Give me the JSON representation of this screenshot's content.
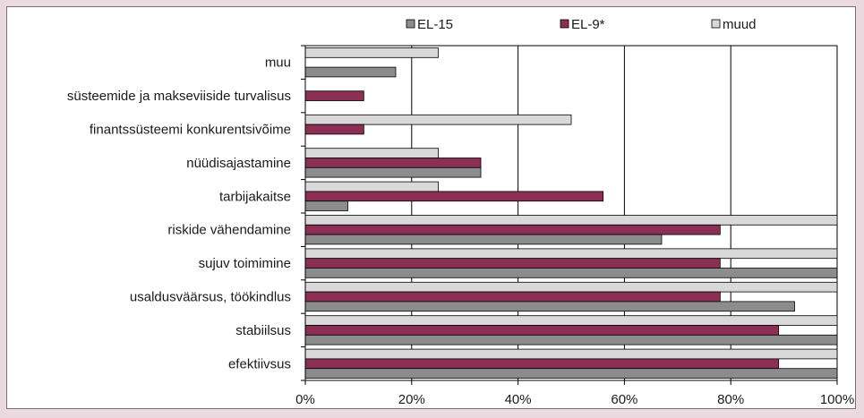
{
  "chart_data": {
    "type": "bar",
    "orientation": "horizontal",
    "categories": [
      "muu",
      "süsteemide ja makseviiside turvalisus",
      "finantssüsteemi konkurentsivõime",
      "nüüdisajastamine",
      "tarbijakaitse",
      "riskide vähendamine",
      "sujuv toimimine",
      "usaldusväärsus, töökindlus",
      "stabiilsus",
      "efektiivsus"
    ],
    "series": [
      {
        "name": "muud",
        "color": "#d9d9d9",
        "values": [
          25,
          0,
          50,
          25,
          25,
          100,
          100,
          100,
          100,
          100
        ]
      },
      {
        "name": "EL-9*",
        "color": "#8b2f55",
        "values": [
          0,
          11,
          11,
          33,
          56,
          78,
          78,
          78,
          89,
          89
        ]
      },
      {
        "name": "EL-15",
        "color": "#8c8c8c",
        "values": [
          17,
          0,
          0,
          33,
          8,
          67,
          100,
          92,
          100,
          100
        ]
      }
    ],
    "legend_order": [
      "EL-15",
      "EL-9*",
      "muud"
    ],
    "x_ticks": [
      "0%",
      "20%",
      "40%",
      "60%",
      "80%",
      "100%"
    ],
    "xlim": [
      0,
      100
    ],
    "grid": true,
    "legend_position": "top"
  }
}
